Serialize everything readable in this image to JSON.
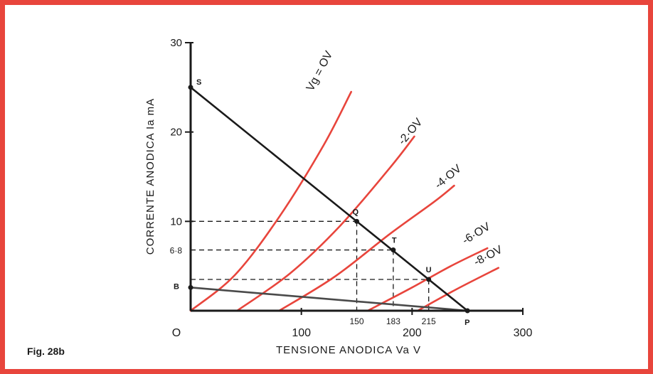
{
  "figure_label": "Fig. 28b",
  "chart_data": {
    "type": "line",
    "xlabel": "TENSIONE ANODICA  Va  V",
    "ylabel": "CORRENTE ANODICA  Ia  mA",
    "xlim": [
      0,
      300
    ],
    "ylim": [
      0,
      30
    ],
    "x_ticks": [
      {
        "value": 0,
        "label": "O"
      },
      {
        "value": 100,
        "label": "100"
      },
      {
        "value": 200,
        "label": "200"
      },
      {
        "value": 300,
        "label": "300"
      }
    ],
    "y_ticks": [
      {
        "value": 10,
        "label": "10"
      },
      {
        "value": 20,
        "label": "20"
      },
      {
        "value": 30,
        "label": "30"
      }
    ],
    "special_ticks": {
      "x": [
        {
          "value": 150,
          "label": "150"
        },
        {
          "value": 183,
          "label": "183"
        },
        {
          "value": 215,
          "label": "215"
        }
      ],
      "y": [
        {
          "value": 6.8,
          "label": "6·8"
        }
      ]
    },
    "series": [
      {
        "name": "Vg = OV",
        "color": "#e8453c",
        "points": [
          [
            0,
            0
          ],
          [
            40,
            4.0
          ],
          [
            80,
            10.5
          ],
          [
            120,
            18.5
          ],
          [
            145,
            24.5
          ]
        ],
        "label_pos": [
          110,
          24.5
        ],
        "label_angle": -62
      },
      {
        "name": "-2·OV",
        "color": "#e8453c",
        "points": [
          [
            42,
            0
          ],
          [
            90,
            4.2
          ],
          [
            135,
            9.5
          ],
          [
            180,
            16.0
          ],
          [
            202,
            19.5
          ]
        ],
        "label_pos": [
          192,
          18.5
        ],
        "label_angle": -50
      },
      {
        "name": "-4·OV",
        "color": "#e8453c",
        "points": [
          [
            80,
            0
          ],
          [
            130,
            3.8
          ],
          [
            180,
            8.6
          ],
          [
            220,
            12.2
          ],
          [
            238,
            14.0
          ]
        ],
        "label_pos": [
          224,
          13.6
        ],
        "label_angle": -40
      },
      {
        "name": "-6·OV",
        "color": "#e8453c",
        "points": [
          [
            160,
            0
          ],
          [
            200,
            2.6
          ],
          [
            235,
            5.0
          ],
          [
            268,
            7.0
          ]
        ],
        "label_pos": [
          248,
          7.4
        ],
        "label_angle": -32
      },
      {
        "name": "-8·OV",
        "color": "#e8453c",
        "points": [
          [
            205,
            0
          ],
          [
            240,
            2.4
          ],
          [
            278,
            4.8
          ]
        ],
        "label_pos": [
          258,
          5.0
        ],
        "label_angle": -28
      }
    ],
    "load_lines": [
      {
        "name": "load-line-SP",
        "color": "#1a1a1a",
        "points": [
          [
            0,
            25
          ],
          [
            250,
            0
          ]
        ]
      },
      {
        "name": "load-line-BP",
        "color": "#4a4a4a",
        "points": [
          [
            0,
            2.6
          ],
          [
            250,
            0
          ]
        ]
      }
    ],
    "points": [
      {
        "label": "S",
        "x": 0,
        "y": 25,
        "dx": 8,
        "dy": -4
      },
      {
        "label": "Q",
        "x": 150,
        "y": 10,
        "dx": -6,
        "dy": -10
      },
      {
        "label": "T",
        "x": 183,
        "y": 6.8,
        "dx": -2,
        "dy": -10
      },
      {
        "label": "U",
        "x": 215,
        "y": 3.5,
        "dx": -4,
        "dy": -10
      },
      {
        "label": "B",
        "x": 0,
        "y": 2.6,
        "dx": -24,
        "dy": 2
      },
      {
        "label": "P",
        "x": 250,
        "y": 0,
        "dx": -4,
        "dy": 20
      }
    ],
    "dashed_guides": [
      {
        "from": [
          0,
          10
        ],
        "to": [
          150,
          10
        ]
      },
      {
        "from": [
          150,
          10
        ],
        "to": [
          150,
          0
        ]
      },
      {
        "from": [
          0,
          6.8
        ],
        "to": [
          183,
          6.8
        ]
      },
      {
        "from": [
          183,
          6.8
        ],
        "to": [
          183,
          0
        ]
      },
      {
        "from": [
          0,
          3.5
        ],
        "to": [
          215,
          3.5
        ]
      },
      {
        "from": [
          215,
          3.5
        ],
        "to": [
          215,
          0
        ]
      }
    ],
    "grid": false
  }
}
